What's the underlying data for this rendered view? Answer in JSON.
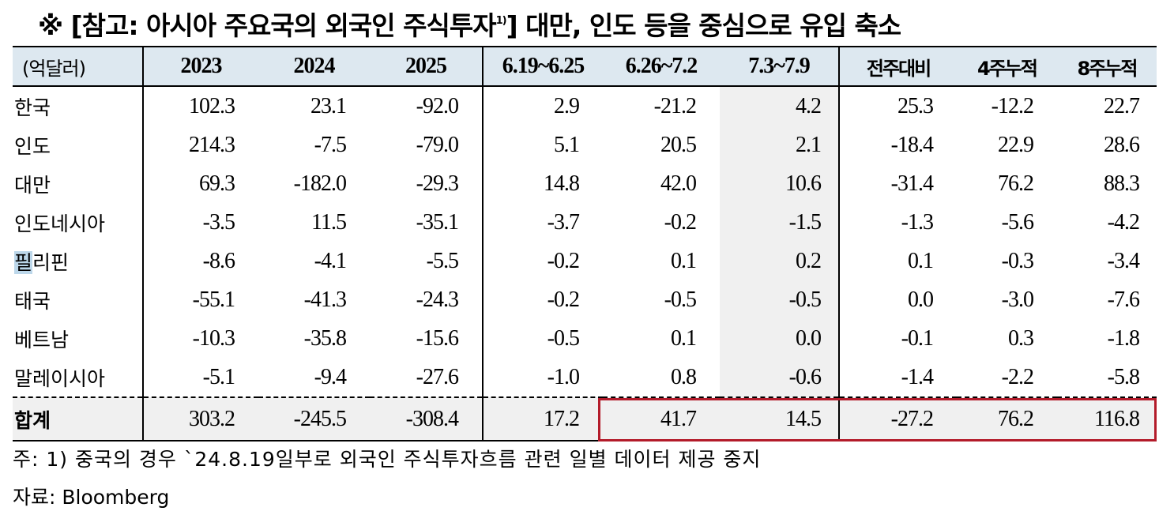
{
  "title": {
    "main": "※ [참고: 아시아 주요국의 외국인 주식투자",
    "sup": "1)",
    "rest": "] 대만, 인도 등을 중심으로 유입 축소"
  },
  "table": {
    "unit": "(억달러)",
    "columns": [
      "2023",
      "2024",
      "2025",
      "6.19~6.25",
      "6.26~7.2",
      "7.3~7.9",
      "전주대비",
      "4주누적",
      "8주누적"
    ],
    "rows": [
      {
        "country": "한국",
        "values": [
          "102.3",
          "23.1",
          "-92.0",
          "2.9",
          "-21.2",
          "4.2",
          "25.3",
          "-12.2",
          "22.7"
        ]
      },
      {
        "country": "인도",
        "values": [
          "214.3",
          "-7.5",
          "-79.0",
          "5.1",
          "20.5",
          "2.1",
          "-18.4",
          "22.9",
          "28.6"
        ]
      },
      {
        "country": "대만",
        "values": [
          "69.3",
          "-182.0",
          "-29.3",
          "14.8",
          "42.0",
          "10.6",
          "-31.4",
          "76.2",
          "88.3"
        ]
      },
      {
        "country": "인도네시아",
        "values": [
          "-3.5",
          "11.5",
          "-35.1",
          "-3.7",
          "-0.2",
          "-1.5",
          "-1.3",
          "-5.6",
          "-4.2"
        ]
      },
      {
        "country_hl": "필",
        "country_rest": "리핀",
        "values": [
          "-8.6",
          "-4.1",
          "-5.5",
          "-0.2",
          "0.1",
          "0.2",
          "0.1",
          "-0.3",
          "-3.4"
        ]
      },
      {
        "country": "태국",
        "values": [
          "-55.1",
          "-41.3",
          "-24.3",
          "-0.2",
          "-0.5",
          "-0.5",
          "0.0",
          "-3.0",
          "-7.6"
        ]
      },
      {
        "country": "베트남",
        "values": [
          "-10.3",
          "-35.8",
          "-15.6",
          "-0.5",
          "0.1",
          "0.0",
          "-0.1",
          "0.3",
          "-1.8"
        ]
      },
      {
        "country": "말레이시아",
        "values": [
          "-5.1",
          "-9.4",
          "-27.6",
          "-1.0",
          "0.8",
          "-0.6",
          "-1.4",
          "-2.2",
          "-5.8"
        ]
      }
    ],
    "total": {
      "label": "합계",
      "values": [
        "303.2",
        "-245.5",
        "-308.4",
        "17.2",
        "41.7",
        "14.5",
        "-27.2",
        "76.2",
        "116.8"
      ]
    }
  },
  "note": "주: 1) 중국의 경우 `24.8.19일부로 외국인 주식투자흐름 관련 일별 데이터 제공 중지",
  "source": "자료: Bloomberg",
  "colors": {
    "header_bg": "#dde8f0",
    "shade_bg": "#f0f0f0",
    "highlight_box": "#b31b2a"
  }
}
